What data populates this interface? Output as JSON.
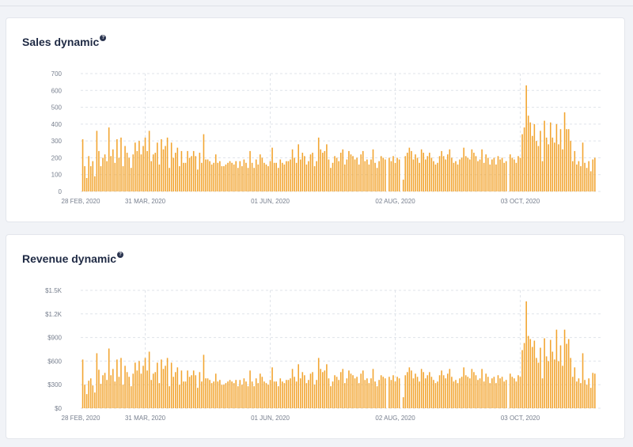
{
  "charts": {
    "sales": {
      "title": "Sales dynamic",
      "help_icon": "question-circle-icon"
    },
    "revenue": {
      "title": "Revenue dynamic",
      "help_icon": "question-circle-icon"
    }
  },
  "colors": {
    "bar": "#f2a531",
    "grid": "#dfe3ea",
    "axis_text": "#777f8e",
    "title": "#1f2a44"
  },
  "chart_data": [
    {
      "type": "bar",
      "title": "Sales dynamic",
      "xlabel": "",
      "ylabel": "",
      "x_start": "28 FEB, 2020",
      "x_tick_labels": [
        "28 FEB, 2020",
        "31 MAR, 2020",
        "01 JUN, 2020",
        "02 AUG, 2020",
        "03 OCT, 2020"
      ],
      "y_tick_labels": [
        "0",
        "100",
        "200",
        "300",
        "400",
        "500",
        "600",
        "700"
      ],
      "ylim": [
        0,
        700
      ],
      "grid": true,
      "values": [
        0,
        310,
        150,
        80,
        210,
        150,
        180,
        90,
        360,
        240,
        150,
        200,
        220,
        180,
        380,
        210,
        250,
        170,
        310,
        200,
        320,
        150,
        270,
        230,
        200,
        140,
        220,
        290,
        240,
        300,
        220,
        270,
        320,
        240,
        360,
        180,
        220,
        230,
        290,
        160,
        310,
        250,
        270,
        320,
        140,
        290,
        200,
        230,
        260,
        150,
        240,
        170,
        170,
        240,
        200,
        210,
        240,
        210,
        130,
        230,
        170,
        340,
        190,
        190,
        180,
        160,
        170,
        220,
        170,
        180,
        150,
        150,
        160,
        170,
        180,
        170,
        160,
        180,
        140,
        180,
        150,
        190,
        170,
        140,
        240,
        170,
        140,
        190,
        160,
        220,
        200,
        170,
        160,
        150,
        180,
        260,
        170,
        170,
        140,
        190,
        170,
        160,
        180,
        180,
        190,
        250,
        200,
        170,
        280,
        190,
        230,
        210,
        160,
        180,
        220,
        230,
        150,
        180,
        320,
        250,
        230,
        240,
        280,
        190,
        140,
        170,
        210,
        200,
        180,
        230,
        250,
        160,
        190,
        240,
        220,
        210,
        190,
        200,
        160,
        220,
        240,
        180,
        190,
        160,
        190,
        250,
        170,
        140,
        180,
        210,
        200,
        190,
        0,
        200,
        180,
        210,
        170,
        200,
        190,
        0,
        70,
        210,
        230,
        260,
        240,
        190,
        220,
        200,
        170,
        250,
        230,
        190,
        210,
        230,
        200,
        180,
        160,
        170,
        210,
        240,
        210,
        190,
        220,
        250,
        200,
        170,
        180,
        160,
        190,
        200,
        260,
        210,
        200,
        190,
        250,
        230,
        210,
        180,
        190,
        250,
        170,
        220,
        200,
        160,
        190,
        200,
        160,
        210,
        190,
        200,
        170,
        180,
        0,
        220,
        200,
        190,
        170,
        210,
        200,
        340,
        380,
        630,
        450,
        410,
        330,
        400,
        300,
        270,
        360,
        180,
        420,
        320,
        280,
        410,
        320,
        290,
        400,
        280,
        370,
        250,
        470,
        370,
        370,
        300,
        180,
        240,
        160,
        180,
        150,
        290,
        170,
        140,
        180,
        120,
        190,
        200
      ]
    },
    {
      "type": "bar",
      "title": "Revenue dynamic",
      "xlabel": "",
      "ylabel": "",
      "x_start": "28 FEB, 2020",
      "x_tick_labels": [
        "28 FEB, 2020",
        "31 MAR, 2020",
        "01 JUN, 2020",
        "02 AUG, 2020",
        "03 OCT, 2020"
      ],
      "y_tick_labels": [
        "$0",
        "$300",
        "$600",
        "$900",
        "$1.2K",
        "$1.5K"
      ],
      "ylim": [
        0,
        1500
      ],
      "grid": true,
      "values": [
        0,
        620,
        300,
        180,
        350,
        380,
        290,
        200,
        700,
        490,
        310,
        420,
        450,
        360,
        760,
        420,
        500,
        340,
        620,
        400,
        640,
        300,
        540,
        460,
        400,
        280,
        440,
        580,
        480,
        600,
        440,
        540,
        640,
        480,
        720,
        360,
        440,
        460,
        580,
        320,
        620,
        500,
        540,
        640,
        280,
        580,
        400,
        460,
        520,
        300,
        480,
        340,
        340,
        480,
        400,
        420,
        480,
        420,
        260,
        460,
        340,
        680,
        380,
        380,
        360,
        320,
        340,
        440,
        340,
        360,
        300,
        300,
        320,
        340,
        360,
        340,
        320,
        360,
        280,
        360,
        300,
        380,
        340,
        280,
        480,
        340,
        280,
        380,
        320,
        440,
        400,
        340,
        320,
        300,
        360,
        520,
        340,
        340,
        280,
        380,
        340,
        320,
        360,
        360,
        380,
        500,
        400,
        340,
        560,
        380,
        460,
        420,
        320,
        360,
        440,
        460,
        300,
        360,
        640,
        500,
        460,
        480,
        560,
        380,
        280,
        340,
        420,
        400,
        360,
        460,
        500,
        320,
        380,
        480,
        440,
        420,
        380,
        400,
        320,
        440,
        480,
        360,
        380,
        320,
        380,
        500,
        340,
        280,
        360,
        420,
        400,
        380,
        0,
        400,
        360,
        420,
        340,
        400,
        380,
        0,
        140,
        420,
        460,
        520,
        480,
        380,
        440,
        400,
        340,
        500,
        460,
        380,
        420,
        460,
        400,
        360,
        320,
        340,
        420,
        480,
        420,
        380,
        440,
        500,
        400,
        340,
        360,
        320,
        380,
        400,
        520,
        420,
        400,
        380,
        500,
        460,
        420,
        360,
        380,
        500,
        340,
        440,
        400,
        320,
        380,
        400,
        320,
        420,
        380,
        400,
        340,
        360,
        0,
        440,
        400,
        380,
        340,
        420,
        400,
        740,
        830,
        1360,
        920,
        880,
        780,
        860,
        640,
        580,
        770,
        380,
        890,
        660,
        600,
        870,
        720,
        620,
        1000,
        600,
        800,
        540,
        1000,
        820,
        880,
        640,
        400,
        520,
        340,
        380,
        320,
        700,
        360,
        300,
        380,
        260,
        450,
        440
      ]
    }
  ]
}
